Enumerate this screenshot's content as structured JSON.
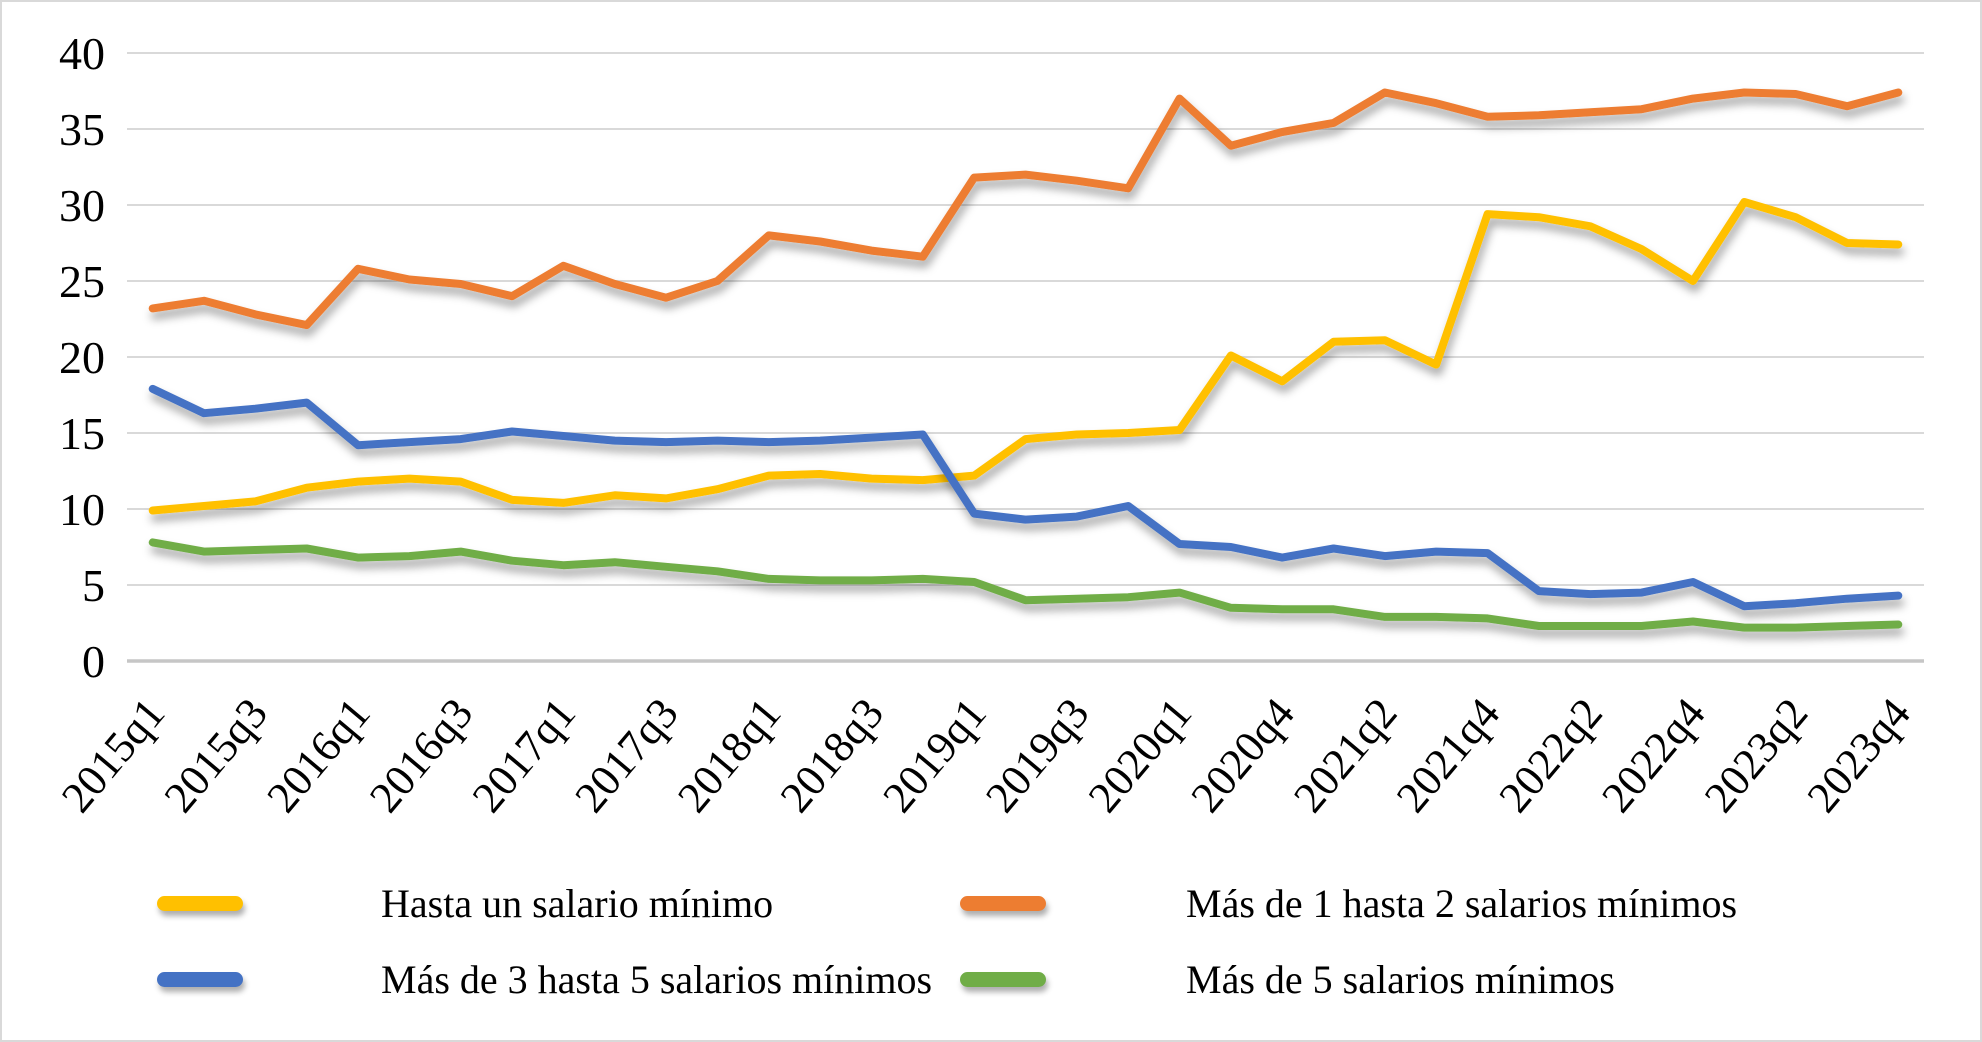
{
  "chart_data": {
    "type": "line",
    "title": "",
    "xlabel": "",
    "ylabel": "",
    "ylim": [
      0,
      40
    ],
    "ytick_step": 5,
    "y_tick_labels": [
      "0",
      "5",
      "10",
      "15",
      "20",
      "25",
      "30",
      "35",
      "40"
    ],
    "grid": true,
    "legend_position": "bottom",
    "note": "quarterly series, 2020q2 missing",
    "x": [
      "2015q1",
      "2015q2",
      "2015q3",
      "2015q4",
      "2016q1",
      "2016q2",
      "2016q3",
      "2016q4",
      "2017q1",
      "2017q2",
      "2017q3",
      "2017q4",
      "2018q1",
      "2018q2",
      "2018q3",
      "2018q4",
      "2019q1",
      "2019q2",
      "2019q3",
      "2019q4",
      "2020q1",
      "2020q3",
      "2020q4",
      "2021q1",
      "2021q2",
      "2021q3",
      "2021q4",
      "2022q1",
      "2022q2",
      "2022q3",
      "2022q4",
      "2023q1",
      "2023q2",
      "2023q3",
      "2023q4"
    ],
    "x_tick_indices": [
      0,
      2,
      4,
      6,
      8,
      10,
      12,
      14,
      16,
      18,
      20,
      22,
      24,
      26,
      28,
      30,
      32,
      34
    ],
    "x_tick_labels": [
      "2015q1",
      "2015q3",
      "2016q1",
      "2016q3",
      "2017q1",
      "2017q3",
      "2018q1",
      "2018q3",
      "2019q1",
      "2019q3",
      "2020q1",
      "2020q4",
      "2021q2",
      "2021q4",
      "2022q2",
      "2022q4",
      "2023q2",
      "2023q4"
    ],
    "series": [
      {
        "name": "Hasta un salario mínimo",
        "color": "#FFC000",
        "values": [
          9.9,
          10.2,
          10.5,
          11.4,
          11.8,
          12.0,
          11.8,
          10.6,
          10.4,
          10.9,
          10.7,
          11.3,
          12.2,
          12.3,
          12.0,
          11.9,
          12.2,
          14.6,
          14.9,
          15.0,
          15.2,
          20.1,
          18.4,
          21.0,
          21.1,
          19.5,
          29.4,
          29.2,
          28.6,
          27.1,
          25.0,
          30.2,
          29.2,
          27.5,
          27.4
        ]
      },
      {
        "name": "Más de 1 hasta 2 salarios mínimos",
        "color": "#ED7D31",
        "values": [
          23.2,
          23.7,
          22.8,
          22.1,
          25.8,
          25.1,
          24.8,
          24.0,
          26.0,
          24.8,
          23.9,
          25.0,
          28.0,
          27.6,
          27.0,
          26.6,
          31.8,
          32.0,
          31.6,
          31.1,
          37.0,
          33.9,
          34.8,
          35.4,
          37.4,
          36.7,
          35.8,
          35.9,
          36.1,
          36.3,
          37.0,
          37.4,
          37.3,
          36.5,
          37.4
        ]
      },
      {
        "name": "Más de 3 hasta 5 salarios mínimos",
        "color": "#4472C4",
        "values": [
          17.9,
          16.3,
          16.6,
          17.0,
          14.2,
          14.4,
          14.6,
          15.1,
          14.8,
          14.5,
          14.4,
          14.5,
          14.4,
          14.5,
          14.7,
          14.9,
          9.7,
          9.3,
          9.5,
          10.2,
          7.7,
          7.5,
          6.8,
          7.4,
          6.9,
          7.2,
          7.1,
          4.6,
          4.4,
          4.5,
          5.2,
          3.6,
          3.8,
          4.1,
          4.3
        ]
      },
      {
        "name": "Más de 5 salarios mínimos",
        "color": "#70AD47",
        "values": [
          7.8,
          7.2,
          7.3,
          7.4,
          6.8,
          6.9,
          7.2,
          6.6,
          6.3,
          6.5,
          6.2,
          5.9,
          5.4,
          5.3,
          5.3,
          5.4,
          5.2,
          4.0,
          4.1,
          4.2,
          4.5,
          3.5,
          3.4,
          3.4,
          2.9,
          2.9,
          2.8,
          2.3,
          2.3,
          2.3,
          2.6,
          2.2,
          2.2,
          2.3,
          2.4
        ]
      }
    ],
    "style": {
      "gridline_color": "#D9D9D9",
      "axis_line_color": "#C6C6C6",
      "background": "#FFFFFF",
      "line_width": 8
    }
  },
  "legend": {
    "rows": [
      [
        {
          "series": 0
        },
        {
          "series": 1
        }
      ],
      [
        {
          "series": 2
        },
        {
          "series": 3
        }
      ]
    ]
  }
}
